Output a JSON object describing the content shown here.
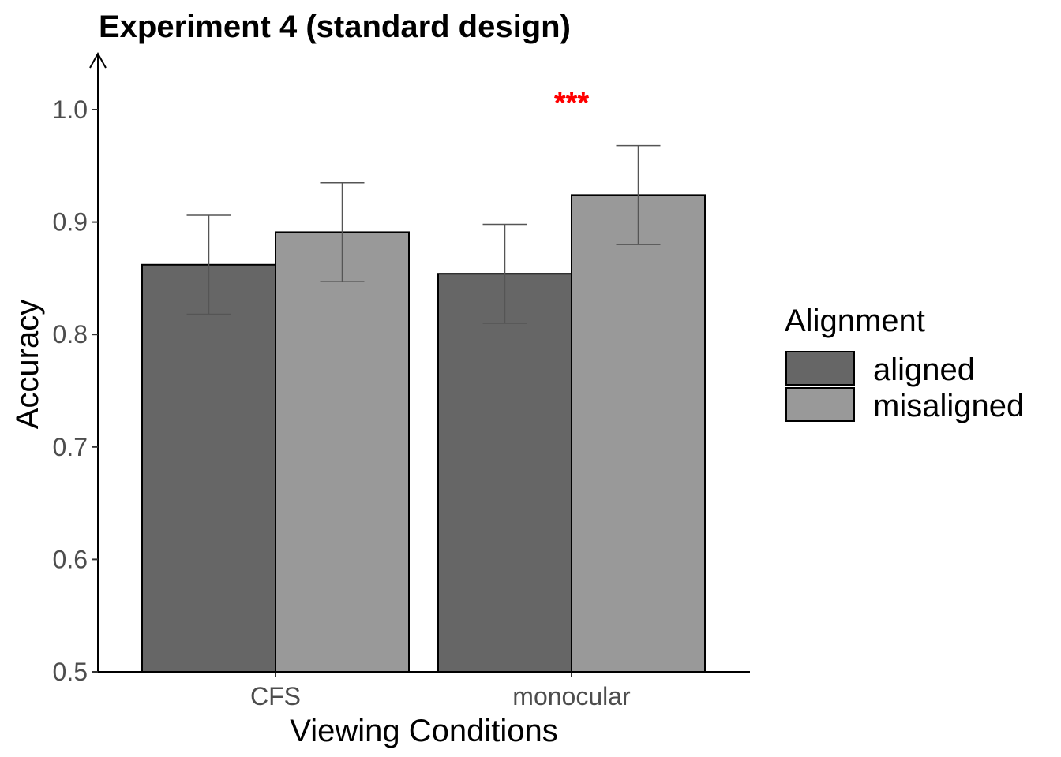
{
  "chart_data": {
    "type": "bar",
    "title": "Experiment 4 (standard design)",
    "xlabel": "Viewing Conditions",
    "ylabel": "Accuracy",
    "ylim": [
      0.5,
      1.0
    ],
    "yticks": [
      "0.5",
      "0.6",
      "0.7",
      "0.8",
      "0.9",
      "1.0"
    ],
    "ytick_values": [
      0.5,
      0.6,
      0.7,
      0.8,
      0.9,
      1.0
    ],
    "categories": [
      "CFS",
      "monocular"
    ],
    "legend_title": "Alignment",
    "legend_position": "right",
    "grid": false,
    "series": [
      {
        "name": "aligned",
        "color": "#666666",
        "values": [
          0.862,
          0.854
        ],
        "error_low": [
          0.818,
          0.81
        ],
        "error_high": [
          0.906,
          0.898
        ]
      },
      {
        "name": "misaligned",
        "color": "#999999",
        "values": [
          0.891,
          0.924
        ],
        "error_low": [
          0.847,
          0.88
        ],
        "error_high": [
          0.935,
          0.968
        ]
      }
    ],
    "annotations": [
      {
        "text": "***",
        "category": "monocular",
        "color": "#ff0000"
      }
    ]
  }
}
